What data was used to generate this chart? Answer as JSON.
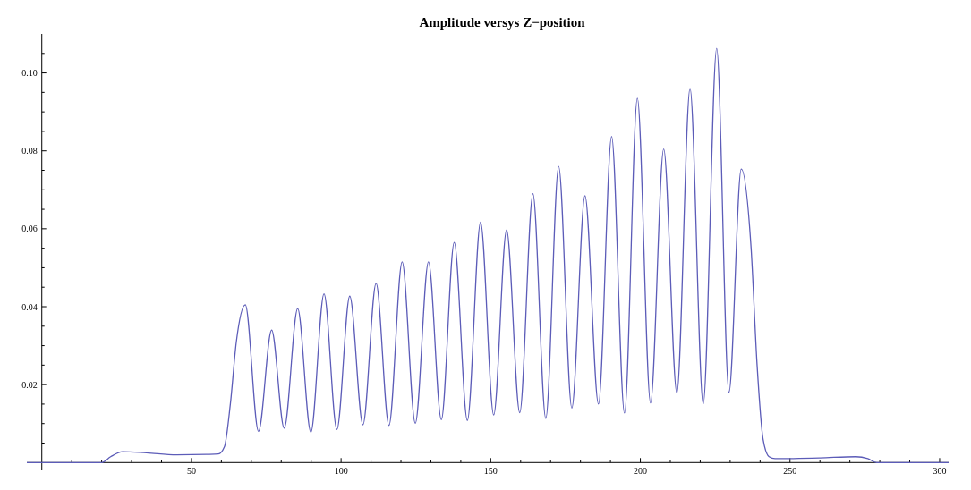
{
  "chart_data": {
    "type": "line",
    "title": "Amplitude versys Z−position",
    "xlim": [
      -5,
      303
    ],
    "ylim": [
      -0.002,
      0.11
    ],
    "xticks": [
      {
        "value": 10,
        "label": null
      },
      {
        "value": 20,
        "label": null
      },
      {
        "value": 30,
        "label": null
      },
      {
        "value": 40,
        "label": null
      },
      50,
      {
        "value": 60,
        "label": null
      },
      {
        "value": 70,
        "label": null
      },
      {
        "value": 80,
        "label": null
      },
      {
        "value": 90,
        "label": null
      },
      100,
      {
        "value": 110,
        "label": null
      },
      {
        "value": 120,
        "label": null
      },
      {
        "value": 130,
        "label": null
      },
      {
        "value": 140,
        "label": null
      },
      150,
      {
        "value": 160,
        "label": null
      },
      {
        "value": 170,
        "label": null
      },
      {
        "value": 180,
        "label": null
      },
      {
        "value": 190,
        "label": null
      },
      200,
      {
        "value": 210,
        "label": null
      },
      {
        "value": 220,
        "label": null
      },
      {
        "value": 230,
        "label": null
      },
      {
        "value": 240,
        "label": null
      },
      250,
      {
        "value": 260,
        "label": null
      },
      {
        "value": 270,
        "label": null
      },
      {
        "value": 280,
        "label": null
      },
      {
        "value": 290,
        "label": null
      },
      300
    ],
    "yticks": [
      {
        "value": 0.005,
        "label": null
      },
      {
        "value": 0.01,
        "label": null
      },
      {
        "value": 0.015,
        "label": null
      },
      {
        "value": 0.02,
        "label": "0.02"
      },
      {
        "value": 0.025,
        "label": null
      },
      {
        "value": 0.03,
        "label": null
      },
      {
        "value": 0.035,
        "label": null
      },
      {
        "value": 0.04,
        "label": "0.04"
      },
      {
        "value": 0.045,
        "label": null
      },
      {
        "value": 0.05,
        "label": null
      },
      {
        "value": 0.055,
        "label": null
      },
      {
        "value": 0.06,
        "label": "0.06"
      },
      {
        "value": 0.065,
        "label": null
      },
      {
        "value": 0.07,
        "label": null
      },
      {
        "value": 0.075,
        "label": null
      },
      {
        "value": 0.08,
        "label": "0.08"
      },
      {
        "value": 0.085,
        "label": null
      },
      {
        "value": 0.09,
        "label": null
      },
      {
        "value": 0.095,
        "label": null
      },
      {
        "value": 0.1,
        "label": "0.10"
      },
      {
        "value": 0.105,
        "label": null
      }
    ],
    "grid": false,
    "marker": "none",
    "line_style": "solid",
    "series": [
      {
        "color": "#5c5cb8",
        "x": [
          -5,
          10,
          20,
          23,
          27,
          35,
          45,
          55,
          59,
          61,
          63,
          65,
          68,
          72.4,
          76.8,
          81,
          85.5,
          89.9,
          94.3,
          98.6,
          102.9,
          107.3,
          111.7,
          116,
          120.4,
          124.8,
          129.2,
          133.5,
          137.8,
          142.2,
          146.6,
          151,
          155.3,
          159.7,
          164.1,
          168.4,
          172.7,
          177.1,
          181.5,
          186,
          190.4,
          194.7,
          199,
          203.4,
          207.8,
          212.2,
          216.6,
          221,
          225.5,
          229.6,
          233.7,
          237,
          239,
          241,
          243,
          245,
          260,
          272,
          276,
          279,
          290,
          303
        ],
        "values": [
          0,
          0,
          0,
          0.0015,
          0.0028,
          0.0025,
          0.002,
          0.0021,
          0.0022,
          0.004,
          0.015,
          0.031,
          0.0405,
          0.008,
          0.034,
          0.0088,
          0.0395,
          0.0078,
          0.0433,
          0.0085,
          0.0427,
          0.0097,
          0.046,
          0.0095,
          0.0515,
          0.0101,
          0.0515,
          0.011,
          0.0565,
          0.0108,
          0.0617,
          0.0122,
          0.0597,
          0.0128,
          0.069,
          0.0113,
          0.076,
          0.014,
          0.0685,
          0.015,
          0.0837,
          0.0127,
          0.0935,
          0.0153,
          0.0805,
          0.0178,
          0.096,
          0.015,
          0.1063,
          0.018,
          0.0753,
          0.055,
          0.025,
          0.006,
          0.0015,
          0.001,
          0.0012,
          0.0015,
          0.001,
          0,
          0,
          0
        ]
      }
    ]
  }
}
